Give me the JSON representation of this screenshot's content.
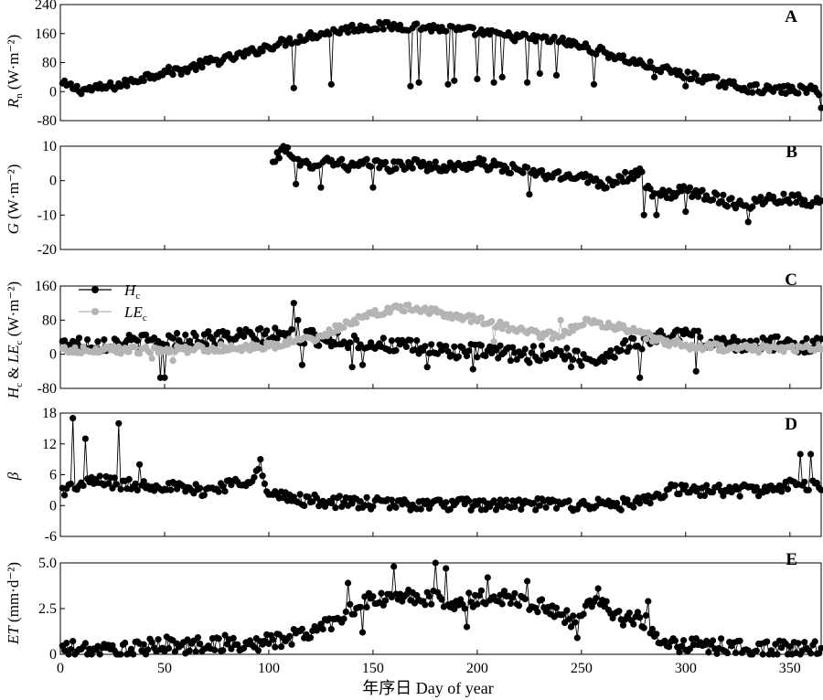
{
  "chart_data": [
    {
      "panel": "A",
      "type": "line",
      "ylabel_main": "R",
      "ylabel_sub": "n",
      "ylabel_unit": " (W·m⁻²)",
      "ylim": [
        -80,
        240
      ],
      "yticks": [
        -80,
        0,
        80,
        160,
        240
      ],
      "xlim": [
        0,
        365
      ],
      "series": [
        {
          "color": "#000000",
          "anchors": [
            [
              1,
              20
            ],
            [
              10,
              5
            ],
            [
              20,
              10
            ],
            [
              30,
              20
            ],
            [
              40,
              40
            ],
            [
              50,
              55
            ],
            [
              60,
              60
            ],
            [
              70,
              80
            ],
            [
              80,
              90
            ],
            [
              90,
              105
            ],
            [
              100,
              125
            ],
            [
              110,
              140
            ],
            [
              120,
              155
            ],
            [
              130,
              165
            ],
            [
              140,
              175
            ],
            [
              150,
              180
            ],
            [
              160,
              180
            ],
            [
              170,
              180
            ],
            [
              180,
              175
            ],
            [
              190,
              170
            ],
            [
              200,
              165
            ],
            [
              210,
              155
            ],
            [
              220,
              150
            ],
            [
              230,
              145
            ],
            [
              240,
              140
            ],
            [
              250,
              125
            ],
            [
              260,
              110
            ],
            [
              270,
              90
            ],
            [
              280,
              75
            ],
            [
              290,
              60
            ],
            [
              300,
              45
            ],
            [
              310,
              35
            ],
            [
              320,
              20
            ],
            [
              330,
              10
            ],
            [
              340,
              5
            ],
            [
              350,
              5
            ],
            [
              360,
              5
            ],
            [
              365,
              0
            ]
          ],
          "noise": 12,
          "dips": [
            [
              112,
              10
            ],
            [
              130,
              20
            ],
            [
              168,
              15
            ],
            [
              172,
              25
            ],
            [
              186,
              20
            ],
            [
              189,
              30
            ],
            [
              200,
              35
            ],
            [
              208,
              25
            ],
            [
              212,
              40
            ],
            [
              224,
              25
            ],
            [
              230,
              50
            ],
            [
              238,
              45
            ],
            [
              256,
              20
            ],
            [
              285,
              40
            ],
            [
              300,
              15
            ],
            [
              365,
              -45
            ]
          ]
        }
      ]
    },
    {
      "panel": "B",
      "type": "line",
      "ylabel_main": "G",
      "ylabel_sub": "",
      "ylabel_unit": " (W·m⁻²)",
      "ylim": [
        -20,
        10
      ],
      "yticks": [
        -20,
        -10,
        0,
        10
      ],
      "xlim": [
        0,
        365
      ],
      "series": [
        {
          "color": "#000000",
          "anchors": [
            [
              102,
              5
            ],
            [
              106,
              9
            ],
            [
              110,
              9
            ],
            [
              115,
              4
            ],
            [
              120,
              5
            ],
            [
              130,
              6
            ],
            [
              140,
              4
            ],
            [
              150,
              5
            ],
            [
              160,
              4
            ],
            [
              170,
              5
            ],
            [
              180,
              4
            ],
            [
              190,
              4
            ],
            [
              200,
              5
            ],
            [
              210,
              4
            ],
            [
              220,
              3
            ],
            [
              230,
              2
            ],
            [
              240,
              1
            ],
            [
              250,
              2
            ],
            [
              255,
              0
            ],
            [
              260,
              -1
            ],
            [
              270,
              1
            ],
            [
              278,
              2
            ],
            [
              285,
              -5
            ],
            [
              290,
              -4
            ],
            [
              300,
              -3
            ],
            [
              310,
              -4
            ],
            [
              320,
              -6
            ],
            [
              330,
              -7
            ],
            [
              340,
              -5
            ],
            [
              350,
              -5
            ],
            [
              360,
              -6
            ],
            [
              365,
              -6
            ]
          ],
          "noise": 1.6,
          "dips": [
            [
              113,
              -1
            ],
            [
              125,
              -2
            ],
            [
              150,
              -2
            ],
            [
              225,
              -4
            ],
            [
              280,
              -10
            ],
            [
              286,
              -10
            ],
            [
              300,
              -9
            ],
            [
              330,
              -12
            ]
          ]
        }
      ]
    },
    {
      "panel": "C",
      "type": "line",
      "ylabel_main": "H",
      "ylabel_sub": "c",
      "ylabel_amp": " & ",
      "ylabel_main2": "LE",
      "ylabel_sub2": "c",
      "ylabel_unit": " (W·m⁻²)",
      "ylim": [
        -80,
        160
      ],
      "yticks": [
        -80,
        0,
        80,
        160
      ],
      "xlim": [
        0,
        365
      ],
      "legend": [
        {
          "main": "H",
          "sub": "c",
          "color": "#000000"
        },
        {
          "main": "LE",
          "sub": "c",
          "color": "#b4b4b4"
        }
      ],
      "series": [
        {
          "name": "Hc",
          "color": "#000000",
          "anchors": [
            [
              1,
              25
            ],
            [
              20,
              25
            ],
            [
              40,
              30
            ],
            [
              60,
              35
            ],
            [
              80,
              40
            ],
            [
              100,
              45
            ],
            [
              120,
              40
            ],
            [
              140,
              30
            ],
            [
              160,
              20
            ],
            [
              180,
              10
            ],
            [
              200,
              5
            ],
            [
              220,
              0
            ],
            [
              240,
              5
            ],
            [
              250,
              -10
            ],
            [
              260,
              -10
            ],
            [
              270,
              20
            ],
            [
              280,
              30
            ],
            [
              290,
              40
            ],
            [
              300,
              50
            ],
            [
              310,
              30
            ],
            [
              320,
              25
            ],
            [
              340,
              25
            ],
            [
              365,
              20
            ]
          ],
          "noise": 18,
          "dips": [
            [
              48,
              -55
            ],
            [
              50,
              -55
            ],
            [
              112,
              120
            ],
            [
              114,
              80
            ],
            [
              116,
              -25
            ],
            [
              140,
              -30
            ],
            [
              145,
              -25
            ],
            [
              176,
              -30
            ],
            [
              198,
              -35
            ],
            [
              225,
              -20
            ],
            [
              245,
              -30
            ],
            [
              278,
              -55
            ],
            [
              305,
              -40
            ]
          ]
        },
        {
          "name": "LEc",
          "color": "#b4b4b4",
          "anchors": [
            [
              1,
              10
            ],
            [
              20,
              10
            ],
            [
              40,
              10
            ],
            [
              60,
              12
            ],
            [
              80,
              15
            ],
            [
              100,
              20
            ],
            [
              120,
              35
            ],
            [
              130,
              55
            ],
            [
              140,
              75
            ],
            [
              150,
              95
            ],
            [
              160,
              105
            ],
            [
              170,
              110
            ],
            [
              180,
              100
            ],
            [
              190,
              90
            ],
            [
              200,
              80
            ],
            [
              210,
              70
            ],
            [
              220,
              55
            ],
            [
              230,
              45
            ],
            [
              240,
              45
            ],
            [
              250,
              75
            ],
            [
              260,
              70
            ],
            [
              270,
              60
            ],
            [
              280,
              45
            ],
            [
              290,
              30
            ],
            [
              300,
              20
            ],
            [
              320,
              15
            ],
            [
              340,
              12
            ],
            [
              365,
              12
            ]
          ],
          "noise": 9,
          "dips": [
            [
              44,
              -10
            ],
            [
              54,
              -15
            ],
            [
              208,
              30
            ],
            [
              240,
              80
            ]
          ]
        }
      ]
    },
    {
      "panel": "D",
      "type": "line",
      "ylabel_main": "β",
      "ylabel_sub": "",
      "ylabel_unit": "",
      "ylim": [
        -6,
        18
      ],
      "yticks": [
        -6,
        0,
        6,
        12,
        18
      ],
      "xlim": [
        0,
        365
      ],
      "series": [
        {
          "color": "#000000",
          "anchors": [
            [
              1,
              3
            ],
            [
              10,
              4
            ],
            [
              20,
              5
            ],
            [
              30,
              4
            ],
            [
              40,
              4
            ],
            [
              50,
              4
            ],
            [
              60,
              3
            ],
            [
              70,
              3
            ],
            [
              80,
              4
            ],
            [
              90,
              5
            ],
            [
              95,
              7
            ],
            [
              100,
              2
            ],
            [
              110,
              1.5
            ],
            [
              120,
              1
            ],
            [
              130,
              0.8
            ],
            [
              140,
              0.5
            ],
            [
              160,
              0.3
            ],
            [
              180,
              0.2
            ],
            [
              200,
              0.2
            ],
            [
              220,
              0.2
            ],
            [
              240,
              0.2
            ],
            [
              260,
              0.2
            ],
            [
              275,
              0.3
            ],
            [
              285,
              1
            ],
            [
              290,
              3
            ],
            [
              300,
              3
            ],
            [
              310,
              3
            ],
            [
              320,
              3
            ],
            [
              330,
              3
            ],
            [
              340,
              3
            ],
            [
              350,
              4
            ],
            [
              360,
              4
            ],
            [
              365,
              3
            ]
          ],
          "noise": 1.2,
          "dips": [
            [
              6,
              17
            ],
            [
              12,
              13
            ],
            [
              28,
              16
            ],
            [
              38,
              8
            ],
            [
              96,
              9
            ],
            [
              355,
              10
            ],
            [
              360,
              10
            ]
          ]
        }
      ]
    },
    {
      "panel": "E",
      "type": "line",
      "ylabel_main": "ET",
      "ylabel_sub": "",
      "ylabel_unit": " (mm·d⁻²)",
      "ylim": [
        0,
        5
      ],
      "yticks": [
        0,
        2.5,
        5
      ],
      "ytick_labels": [
        "0",
        "2.5",
        "5.0"
      ],
      "xlim": [
        0,
        365
      ],
      "xticks": [
        0,
        50,
        100,
        150,
        200,
        250,
        300,
        350
      ],
      "xlabel": "年序日 Day of year",
      "series": [
        {
          "color": "#000000",
          "anchors": [
            [
              1,
              0.3
            ],
            [
              20,
              0.2
            ],
            [
              40,
              0.3
            ],
            [
              50,
              0.6
            ],
            [
              60,
              0.4
            ],
            [
              70,
              0.6
            ],
            [
              80,
              0.6
            ],
            [
              90,
              0.5
            ],
            [
              100,
              0.7
            ],
            [
              110,
              0.9
            ],
            [
              120,
              1.2
            ],
            [
              130,
              1.8
            ],
            [
              140,
              2.5
            ],
            [
              150,
              3
            ],
            [
              160,
              3
            ],
            [
              170,
              3.2
            ],
            [
              180,
              3
            ],
            [
              190,
              2.8
            ],
            [
              200,
              3
            ],
            [
              210,
              3.2
            ],
            [
              220,
              3
            ],
            [
              230,
              2.6
            ],
            [
              240,
              2.2
            ],
            [
              250,
              2
            ],
            [
              255,
              3
            ],
            [
              260,
              2.8
            ],
            [
              270,
              2
            ],
            [
              280,
              1.8
            ],
            [
              290,
              0.7
            ],
            [
              300,
              0.5
            ],
            [
              310,
              0.5
            ],
            [
              320,
              0.4
            ],
            [
              330,
              0.3
            ],
            [
              340,
              0.3
            ],
            [
              350,
              0.3
            ],
            [
              365,
              0.3
            ]
          ],
          "noise": 0.45,
          "dips": [
            [
              138,
              3.9
            ],
            [
              145,
              1.2
            ],
            [
              160,
              4.8
            ],
            [
              180,
              5
            ],
            [
              185,
              4.7
            ],
            [
              195,
              1.5
            ],
            [
              205,
              4.2
            ],
            [
              224,
              4
            ],
            [
              245,
              1.5
            ],
            [
              248,
              0.9
            ],
            [
              258,
              3.6
            ],
            [
              282,
              2.9
            ]
          ]
        }
      ]
    }
  ]
}
